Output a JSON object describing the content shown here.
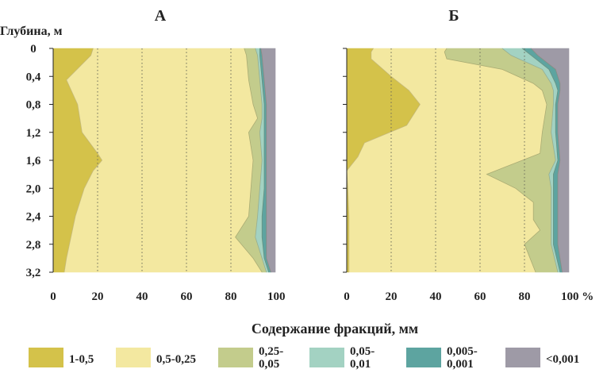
{
  "chart_data": {
    "type": "area",
    "ylabel": "Глубина, м",
    "xlabel": "Содержание фракций, мм",
    "depth_ticks": [
      "0",
      "0,4",
      "0,8",
      "1,2",
      "1,6",
      "2,0",
      "2,4",
      "2,8",
      "3,2"
    ],
    "xlim": [
      0,
      100
    ],
    "ylim": [
      0,
      3.2
    ],
    "x_grid": [
      20,
      40,
      60,
      80
    ],
    "legend": [
      {
        "label": "1-0,5",
        "color": "#d4c24a"
      },
      {
        "label": "0,5-0,25",
        "color": "#f3e8a0"
      },
      {
        "label": "0,25-\n0,05",
        "color": "#c3cc8c"
      },
      {
        "label": "0,05-\n0,01",
        "color": "#a3d2c2"
      },
      {
        "label": "0,005-\n0,001",
        "color": "#5da4a0"
      },
      {
        "label": "<0,001",
        "color": "#9e9aa6"
      }
    ],
    "panels": [
      {
        "title": "А",
        "x_ticks": [
          "0",
          "20",
          "40",
          "60",
          "80",
          "100"
        ],
        "boundaries": [
          {
            "depth": [
              0,
              0.1,
              0.45,
              0.8,
              1.0,
              1.2,
              1.5,
              1.6,
              1.75,
              2.0,
              2.4,
              2.7,
              3.0,
              3.2
            ],
            "value": [
              18,
              17,
              6,
              11,
              12,
              13,
              20,
              22,
              18,
              14,
              10,
              8,
              6,
              5
            ]
          },
          {
            "depth": [
              0,
              0.1,
              0.45,
              0.8,
              1.0,
              1.2,
              1.6,
              2.0,
              2.4,
              2.7,
              3.0,
              3.2
            ],
            "value": [
              86,
              87,
              88,
              90,
              92,
              88,
              90,
              89,
              88,
              82,
              90,
              94
            ]
          },
          {
            "depth": [
              0,
              0.1,
              0.45,
              0.8,
              1.0,
              1.2,
              1.6,
              2.0,
              2.4,
              2.7,
              3.0,
              3.2
            ],
            "value": [
              91,
              92,
              93,
              94,
              94,
              93,
              94,
              93,
              92,
              91,
              94,
              96
            ]
          },
          {
            "depth": [
              0,
              0.1,
              0.45,
              0.8,
              1.0,
              1.2,
              1.6,
              2.0,
              2.4,
              2.7,
              3.0,
              3.2
            ],
            "value": [
              93,
              93,
              94,
              95,
              95,
              95,
              95,
              95,
              94,
              94,
              95,
              97
            ]
          },
          {
            "depth": [
              0,
              0.1,
              0.45,
              0.8,
              1.0,
              1.2,
              1.6,
              2.0,
              2.4,
              2.7,
              3.0,
              3.2
            ],
            "value": [
              93.5,
              94,
              95,
              96,
              96,
              96,
              96,
              96,
              96,
              96,
              96,
              98
            ]
          }
        ]
      },
      {
        "title": "Б",
        "x_ticks": [
          "0",
          "20",
          "40",
          "60",
          "80",
          "100 %"
        ],
        "boundaries": [
          {
            "depth": [
              0,
              0.05,
              0.15,
              0.4,
              0.6,
              0.8,
              1.1,
              1.35,
              1.55,
              1.75,
              2.0,
              2.4,
              2.8,
              3.2
            ],
            "value": [
              12,
              11,
              11,
              20,
              28,
              33,
              27,
              8,
              5,
              0,
              0.5,
              1,
              1,
              1
            ]
          },
          {
            "depth": [
              0,
              0.05,
              0.15,
              0.3,
              0.5,
              0.6,
              0.8,
              1.2,
              1.5,
              1.8,
              2.0,
              2.2,
              2.45,
              2.6,
              2.8,
              3.2
            ],
            "value": [
              45,
              44,
              45,
              70,
              84,
              88,
              90,
              88,
              87,
              63,
              76,
              84,
              84,
              87,
              80,
              85
            ]
          },
          {
            "depth": [
              0,
              0.1,
              0.3,
              0.5,
              0.6,
              0.8,
              1.2,
              1.6,
              1.8,
              2.0,
              2.4,
              2.8,
              3.2
            ],
            "value": [
              70,
              74,
              88,
              92,
              93,
              93,
              92,
              94,
              91,
              92,
              92,
              92,
              95
            ]
          },
          {
            "depth": [
              0,
              0.1,
              0.3,
              0.5,
              0.6,
              0.8,
              1.2,
              1.6,
              1.8,
              2.0,
              2.4,
              2.8,
              3.2
            ],
            "value": [
              79,
              83,
              91,
              94,
              95,
              94,
              94,
              95,
              93,
              93,
              93,
              93,
              96
            ]
          },
          {
            "depth": [
              0,
              0.1,
              0.3,
              0.5,
              0.6,
              0.8,
              1.2,
              1.6,
              1.8,
              2.0,
              2.4,
              2.8,
              3.2
            ],
            "value": [
              83,
              86,
              94,
              96,
              96,
              95,
              95,
              96,
              95,
              95,
              95,
              95,
              97
            ]
          }
        ]
      }
    ]
  }
}
